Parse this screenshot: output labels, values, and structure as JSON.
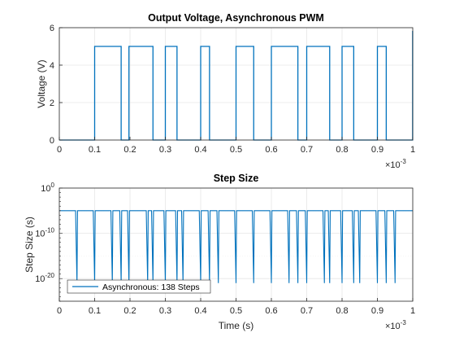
{
  "chart_data": [
    {
      "type": "line",
      "title": "Output Voltage, Asynchronous PWM",
      "xlabel": "",
      "ylabel": "Voltage (V)",
      "xlim": [
        0,
        1
      ],
      "ylim": [
        0,
        6
      ],
      "x_tick_labels": [
        "0",
        "0.1",
        "0.2",
        "0.3",
        "0.4",
        "0.5",
        "0.6",
        "0.7",
        "0.8",
        "0.9",
        "1"
      ],
      "x_exponent_base": "×10",
      "x_exponent": "-3",
      "y_tick_labels": [
        "0",
        "2",
        "4",
        "6"
      ],
      "y_ticks": [
        0,
        2,
        4,
        6
      ],
      "grid": true,
      "color": "#0072BD",
      "high_level": 5,
      "low_level": 0,
      "pulses_ms": [
        [
          0.1,
          0.175
        ],
        [
          0.197,
          0.265
        ],
        [
          0.3,
          0.333
        ],
        [
          0.4,
          0.425
        ],
        [
          0.5,
          0.55
        ],
        [
          0.6,
          0.675
        ],
        [
          0.7,
          0.765
        ],
        [
          0.8,
          0.833
        ],
        [
          0.9,
          0.925
        ]
      ],
      "x_end": 0.9997
    },
    {
      "type": "line",
      "title": "Step Size",
      "xlabel": "Time (s)",
      "ylabel": "Step Size (s)",
      "xlim": [
        0,
        1
      ],
      "y_scale": "log",
      "ylim_exponent": [
        -25,
        0
      ],
      "x_tick_labels": [
        "0",
        "0.1",
        "0.2",
        "0.3",
        "0.4",
        "0.5",
        "0.6",
        "0.7",
        "0.8",
        "0.9",
        "1"
      ],
      "x_exponent_base": "×10",
      "x_exponent": "-3",
      "y_tick_labels": [
        {
          "base": "10",
          "exp": "0"
        },
        {
          "base": "10",
          "exp": "-10"
        },
        {
          "base": "10",
          "exp": "-20"
        }
      ],
      "y_tick_exponents": [
        0,
        -10,
        -20
      ],
      "grid": true,
      "color": "#0072BD",
      "legend": {
        "label": "Asynchronous: 138 Steps",
        "location": "bottom-left"
      },
      "nominal_step_log10": -5,
      "dip_log10": -21,
      "edge_times_ms": [
        0.05,
        0.1,
        0.15,
        0.175,
        0.197,
        0.25,
        0.265,
        0.3,
        0.333,
        0.35,
        0.4,
        0.425,
        0.45,
        0.5,
        0.55,
        0.6,
        0.65,
        0.675,
        0.7,
        0.75,
        0.765,
        0.8,
        0.833,
        0.85,
        0.9,
        0.925,
        0.95
      ]
    }
  ]
}
